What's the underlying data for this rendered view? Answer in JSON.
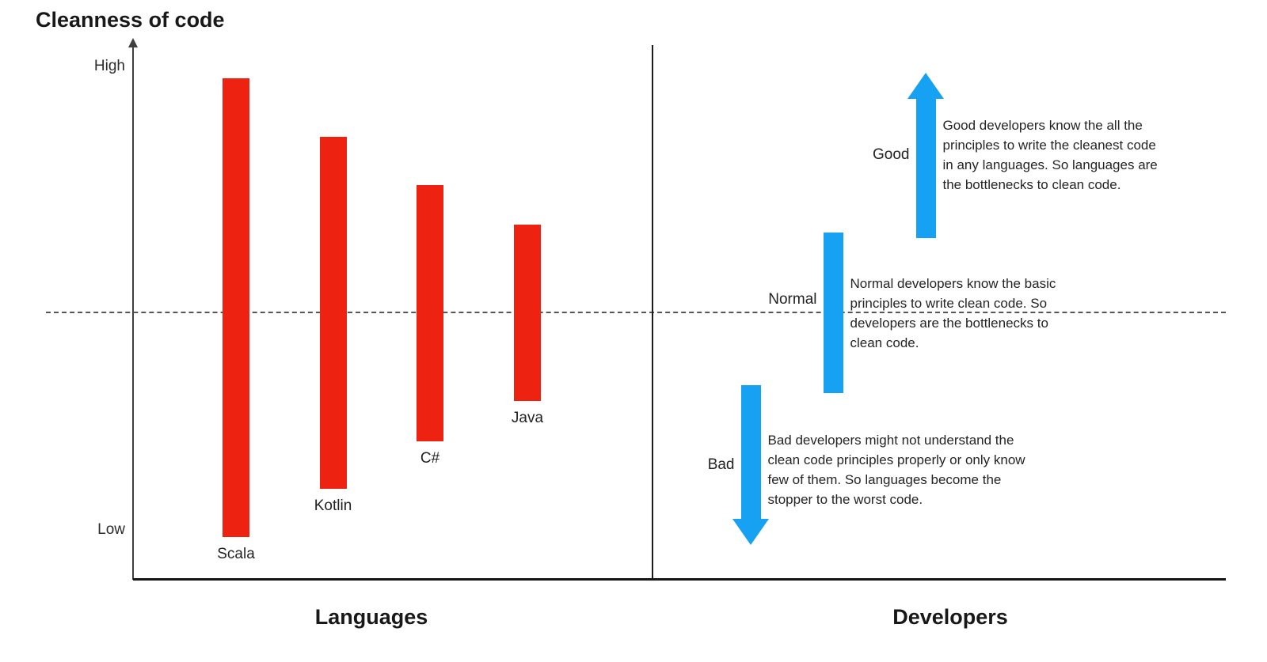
{
  "title": "Cleanness of code",
  "y_axis": {
    "high": "High",
    "low": "Low"
  },
  "colors": {
    "bar_red": "#ee2211",
    "arrow_blue": "#16a1f3",
    "axis_gray": "#3f3f3f",
    "midline_gray": "#555555"
  },
  "chart_data": {
    "type": "bar",
    "subtype": "floating-range-bars-with-arrows",
    "title": "Cleanness of code",
    "ylabel": "Cleanness of code",
    "y_tick_top": "High",
    "y_tick_bottom": "Low",
    "ylim": [
      0,
      100
    ],
    "midline_value": 50,
    "midline_style": "dashed",
    "grid": false,
    "groups": [
      {
        "label": "Languages",
        "mark": "bar",
        "color": "#ee2211",
        "items": [
          {
            "name": "Scala",
            "low": 8,
            "high": 94
          },
          {
            "name": "Kotlin",
            "low": 17,
            "high": 83
          },
          {
            "name": "C#",
            "low": 26,
            "high": 74
          },
          {
            "name": "Java",
            "low": 33.5,
            "high": 66.5
          }
        ]
      },
      {
        "label": "Developers",
        "mark": "arrow",
        "color": "#16a1f3",
        "items": [
          {
            "name": "Good",
            "low": 64,
            "high": 95,
            "arrow": "up",
            "note_lines": [
              "Good developers know the all the",
              "principles to write the cleanest code",
              "in any languages. So languages are",
              "the bottlenecks to clean code."
            ]
          },
          {
            "name": "Normal",
            "low": 35,
            "high": 65,
            "arrow": "none",
            "note_lines": [
              "Normal developers know the basic",
              "principles to write clean code. So",
              "developers are the bottlenecks to",
              "clean code."
            ]
          },
          {
            "name": "Bad",
            "low": 6.5,
            "high": 36.5,
            "arrow": "down",
            "note_lines": [
              "Bad developers might not understand the",
              "clean code principles properly or only know",
              "few of them. So languages become the",
              "stopper to the worst code."
            ]
          }
        ]
      }
    ]
  }
}
